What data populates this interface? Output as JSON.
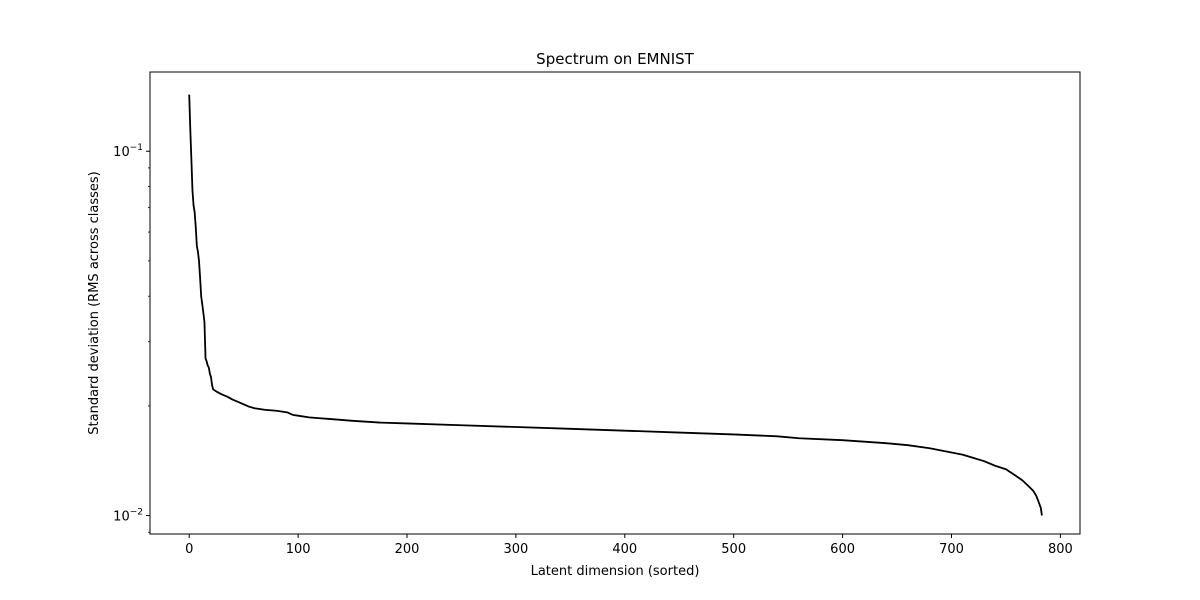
{
  "chart_data": {
    "type": "line",
    "title": "Spectrum on EMNIST",
    "xlabel": "Latent dimension (sorted)",
    "ylabel": "Standard deviation (RMS across classes)",
    "xlim": [
      -36,
      818
    ],
    "ylim": [
      0.0089,
      0.165
    ],
    "yscale": "log",
    "grid": false,
    "x_ticks": [
      0,
      100,
      200,
      300,
      400,
      500,
      600,
      700,
      800
    ],
    "y_ticks": [
      {
        "value": 0.1,
        "base": "10",
        "exp": "−1"
      },
      {
        "value": 0.01,
        "base": "10",
        "exp": "−2"
      }
    ],
    "line_color": "#000000",
    "series": [
      {
        "x": [
          0,
          1,
          2,
          3,
          4,
          5,
          6,
          7,
          8,
          9,
          10,
          11,
          12,
          13,
          14,
          15,
          16,
          17,
          18,
          19,
          20,
          21,
          22,
          25,
          30,
          35,
          40,
          45,
          50,
          55,
          60,
          70,
          80,
          90,
          95,
          100,
          110,
          120,
          130,
          150,
          175,
          200,
          250,
          300,
          350,
          400,
          450,
          500,
          540,
          560,
          600,
          640,
          660,
          680,
          700,
          710,
          720,
          730,
          740,
          750,
          755,
          760,
          765,
          770,
          775,
          778,
          780,
          782,
          783
        ],
        "y": [
          0.143,
          0.115,
          0.095,
          0.078,
          0.071,
          0.068,
          0.062,
          0.055,
          0.053,
          0.05,
          0.045,
          0.04,
          0.038,
          0.036,
          0.034,
          0.027,
          0.0265,
          0.0258,
          0.0255,
          0.0245,
          0.024,
          0.0228,
          0.0222,
          0.0219,
          0.0215,
          0.0212,
          0.0208,
          0.0205,
          0.0202,
          0.0199,
          0.0197,
          0.0195,
          0.0194,
          0.0192,
          0.0189,
          0.0188,
          0.0186,
          0.0185,
          0.0184,
          0.0182,
          0.018,
          0.0179,
          0.0177,
          0.0175,
          0.0173,
          0.0171,
          0.0169,
          0.0167,
          0.0165,
          0.0163,
          0.0161,
          0.0158,
          0.0156,
          0.0153,
          0.0149,
          0.0147,
          0.0144,
          0.0141,
          0.0137,
          0.0134,
          0.0131,
          0.0128,
          0.0125,
          0.0121,
          0.0117,
          0.0113,
          0.0109,
          0.0105,
          0.01
        ]
      }
    ]
  }
}
